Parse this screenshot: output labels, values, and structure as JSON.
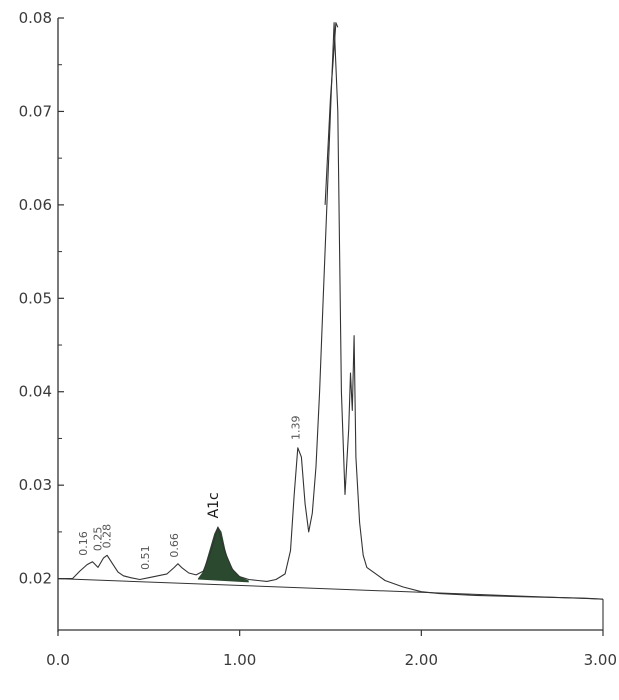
{
  "chart_data": {
    "type": "line",
    "title": "",
    "xlabel": "",
    "ylabel": "",
    "xlim": [
      0.0,
      3.0
    ],
    "ylim": [
      0.0145,
      0.08
    ],
    "x_ticks": [
      {
        "value": 0.0,
        "label": "0.0"
      },
      {
        "value": 1.0,
        "label": "1.00"
      },
      {
        "value": 2.0,
        "label": "2.00"
      },
      {
        "value": 3.0,
        "label": "3.00"
      }
    ],
    "y_ticks": [
      {
        "value": 0.02,
        "label": "0.02"
      },
      {
        "value": 0.03,
        "label": "0.03"
      },
      {
        "value": 0.04,
        "label": "0.04"
      },
      {
        "value": 0.05,
        "label": "0.05"
      },
      {
        "value": 0.06,
        "label": "0.06"
      },
      {
        "value": 0.07,
        "label": "0.07"
      },
      {
        "value": 0.08,
        "label": "0.08"
      }
    ],
    "grid": false,
    "colors": {
      "line": "#333333",
      "a1c_fill": "#1f3f24"
    },
    "series": [
      {
        "x": [
          0.0,
          0.08,
          0.12,
          0.16,
          0.19,
          0.22,
          0.25,
          0.27,
          0.3,
          0.33,
          0.36,
          0.4,
          0.45,
          0.5,
          0.55,
          0.6,
          0.64,
          0.66,
          0.68,
          0.72,
          0.76,
          0.8,
          0.84,
          0.88,
          0.92,
          0.96,
          1.0,
          1.05,
          1.1,
          1.15,
          1.2,
          1.25,
          1.28,
          1.3,
          1.32,
          1.34,
          1.36,
          1.38,
          1.4,
          1.42,
          1.44,
          1.46,
          1.48,
          1.5,
          1.52,
          1.54,
          1.56,
          1.58,
          1.6,
          1.61,
          1.62,
          1.63,
          1.64,
          1.66,
          1.68,
          1.7,
          1.75,
          1.8,
          1.9,
          2.0,
          2.1,
          2.3,
          2.5,
          2.7,
          2.9,
          3.0
        ],
        "y": [
          0.02,
          0.02,
          0.0208,
          0.0215,
          0.0218,
          0.0212,
          0.0222,
          0.0225,
          0.0216,
          0.0207,
          0.0203,
          0.0201,
          0.0199,
          0.0201,
          0.0203,
          0.0205,
          0.0212,
          0.0216,
          0.0212,
          0.0206,
          0.0204,
          0.0208,
          0.0228,
          0.0255,
          0.0228,
          0.021,
          0.0202,
          0.0199,
          0.0198,
          0.0197,
          0.0199,
          0.0205,
          0.023,
          0.029,
          0.034,
          0.033,
          0.028,
          0.025,
          0.027,
          0.032,
          0.04,
          0.05,
          0.06,
          0.07,
          0.0795,
          0.07,
          0.04,
          0.029,
          0.036,
          0.042,
          0.038,
          0.046,
          0.033,
          0.026,
          0.0225,
          0.0212,
          0.0205,
          0.0198,
          0.0191,
          0.0186,
          0.0184,
          0.0182,
          0.0181,
          0.018,
          0.0179,
          0.0178
        ]
      },
      {
        "x": [
          1.47,
          1.5,
          1.53,
          1.54
        ],
        "y": [
          0.06,
          0.0715,
          0.0795,
          0.079
        ]
      }
    ],
    "baseline": {
      "x": [
        0.0,
        3.0
      ],
      "y": [
        0.02,
        0.0178
      ]
    },
    "a1c_peak": {
      "x": [
        0.77,
        0.8,
        0.83,
        0.86,
        0.88,
        0.9,
        0.92,
        0.94,
        0.97,
        1.0,
        1.05
      ],
      "y": [
        0.02,
        0.0208,
        0.0228,
        0.0248,
        0.0256,
        0.025,
        0.0232,
        0.0218,
        0.0208,
        0.0202,
        0.0198
      ]
    },
    "annotations": [
      {
        "text": "0.16",
        "x": 0.16,
        "y": 0.0218
      },
      {
        "text": "0.25",
        "x": 0.24,
        "y": 0.0223
      },
      {
        "text": "0.28",
        "x": 0.29,
        "y": 0.0226
      },
      {
        "text": "0.51",
        "x": 0.5,
        "y": 0.0203
      },
      {
        "text": "0.66",
        "x": 0.66,
        "y": 0.0216
      },
      {
        "text": "1.39",
        "x": 1.33,
        "y": 0.0342
      },
      {
        "text": "A1c",
        "x": 0.88,
        "y": 0.0258,
        "emphasis": true
      }
    ]
  }
}
